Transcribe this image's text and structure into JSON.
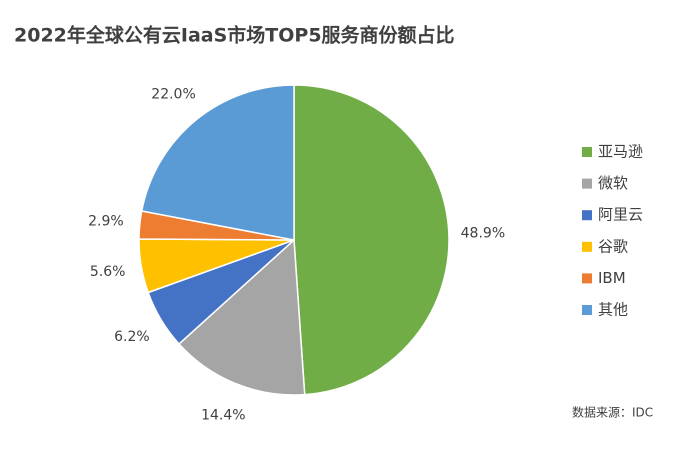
{
  "chart_data": {
    "type": "pie",
    "title": "2022年全球公有云IaaS市场TOP5服务商份额占比",
    "categories": [
      "亚马逊",
      "微软",
      "阿里云",
      "谷歌",
      "IBM",
      "其他"
    ],
    "values": [
      48.9,
      14.4,
      6.2,
      5.6,
      2.9,
      22.0
    ],
    "value_labels": [
      "48.9%",
      "14.4%",
      "6.2%",
      "5.6%",
      "2.9%",
      "22.0%"
    ],
    "colors": [
      "#70ad47",
      "#a5a5a5",
      "#4472c4",
      "#ffc000",
      "#ed7d31",
      "#5b9bd5"
    ],
    "legend": "right",
    "source": "数据来源：IDC"
  }
}
